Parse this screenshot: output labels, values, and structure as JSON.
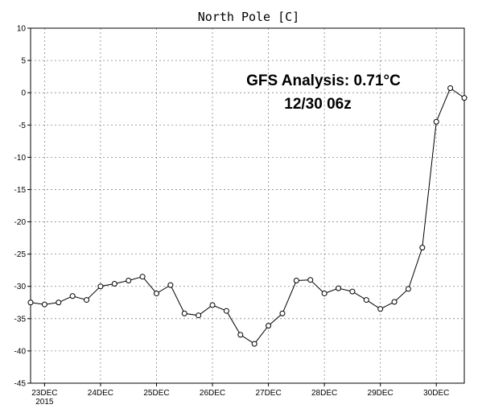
{
  "chart_data": {
    "type": "line",
    "title": "North Pole [C]",
    "xlabel": "",
    "ylabel": "",
    "ylim": [
      -45,
      10
    ],
    "yticks": [
      10,
      5,
      0,
      -5,
      -10,
      -15,
      -20,
      -25,
      -30,
      -35,
      -40,
      -45
    ],
    "xlim": [
      0,
      31
    ],
    "xticks": [
      {
        "x": 1,
        "label": "23DEC",
        "sublabel": "2015"
      },
      {
        "x": 5,
        "label": "24DEC"
      },
      {
        "x": 9,
        "label": "25DEC"
      },
      {
        "x": 13,
        "label": "26DEC"
      },
      {
        "x": 17,
        "label": "27DEC"
      },
      {
        "x": 21,
        "label": "28DEC"
      },
      {
        "x": 25,
        "label": "29DEC"
      },
      {
        "x": 29,
        "label": "30DEC"
      }
    ],
    "grid": true,
    "series": [
      {
        "x": [
          0,
          1,
          2,
          3,
          4,
          5,
          6,
          7,
          8,
          9,
          10,
          11,
          12,
          13,
          14,
          15,
          16,
          17,
          18,
          19,
          20,
          21,
          22,
          23,
          24,
          25,
          26,
          27,
          28,
          29,
          30,
          31
        ],
        "values": [
          -32.5,
          -32.8,
          -32.5,
          -31.5,
          -32.1,
          -30,
          -29.6,
          -29.1,
          -28.5,
          -31.1,
          -29.8,
          -34.2,
          -34.5,
          -32.9,
          -33.8,
          -37.5,
          -38.9,
          -36.1,
          -34.2,
          -29.1,
          -29,
          -31.1,
          -30.3,
          -30.8,
          -32.1,
          -33.5,
          -32.4,
          -30.4,
          -24,
          -4.5,
          0.71,
          -0.8
        ]
      }
    ],
    "annotations": [
      "GFS Analysis:  0.71°C",
      "12/30 06z"
    ]
  }
}
